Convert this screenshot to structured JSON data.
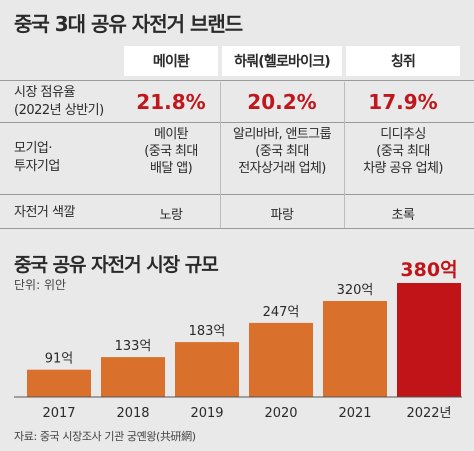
{
  "title": "중국 3대 공유 자전거 브랜드",
  "table": {
    "brands": [
      "메이퇀",
      "하뤄(헬로바이크)",
      "칭쥐"
    ],
    "share_label": [
      "시장 점유율",
      "(2022년 상반기)"
    ],
    "shares": [
      "21.8%",
      "20.2%",
      "17.9%"
    ],
    "parent_label": [
      "모기업·",
      "투자기업"
    ],
    "parents": [
      [
        "메이퇀",
        "(중국 최대",
        "배달 앱)"
      ],
      [
        "알리바바, 앤트그룹",
        "(중국 최대",
        "전자상거래 업체)"
      ],
      [
        "디디추싱",
        "(중국 최대",
        "차량 공유 업체)"
      ]
    ],
    "color_label": "자전거 색깔",
    "colors": [
      "노랑",
      "파랑",
      "초록"
    ]
  },
  "chart_title": "중국 공유 자전거 시장 규모",
  "unit_label": "단위: 위안",
  "source": "자료: 중국 시장조사 기관 궁옌왕(共研網)",
  "colors": {
    "bar": "#d9702c",
    "highlight_bar": "#c01419",
    "highlight_text": "#c01419"
  },
  "chart_data": {
    "type": "bar",
    "categories": [
      "2017",
      "2018",
      "2019",
      "2020",
      "2021",
      "2022년"
    ],
    "values": [
      91,
      133,
      183,
      247,
      320,
      380
    ],
    "value_labels": [
      "91억",
      "133억",
      "183억",
      "247억",
      "320억",
      "380억"
    ],
    "title": "중국 공유 자전거 시장 규모",
    "ylabel": "단위: 위안",
    "highlight_index": 5,
    "grid": false
  }
}
